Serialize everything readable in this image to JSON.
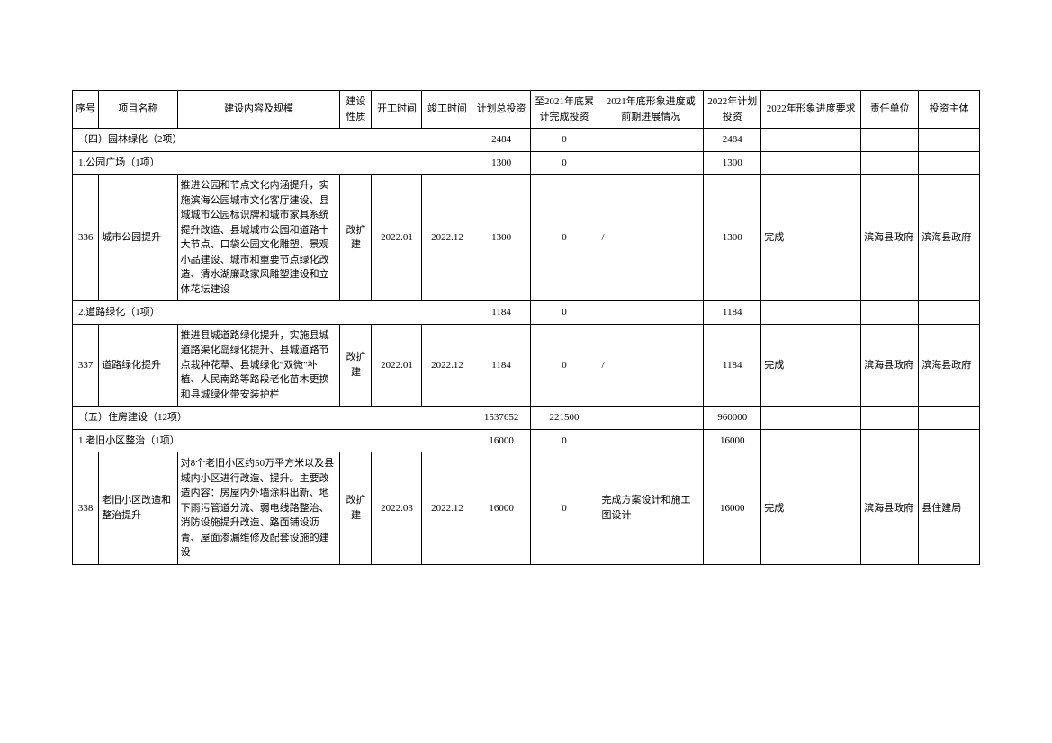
{
  "headers": {
    "seq": "序号",
    "name": "项目名称",
    "content": "建设内容及规模",
    "nature": "建设性质",
    "start": "开工时间",
    "end": "竣工时间",
    "plan_inv": "计划总投资",
    "cum_2021": "至2021年底累计完成投资",
    "prog_2021": "2021年底形象进度或前期进展情况",
    "plan_2022": "2022年计划投资",
    "req_2022": "2022年形象进度要求",
    "resp": "责任单位",
    "investor": "投资主体"
  },
  "rows": [
    {
      "type": "section",
      "label": "（四）园林绿化（2项）",
      "plan_inv": "2484",
      "cum_2021": "0",
      "plan_2022": "2484"
    },
    {
      "type": "section",
      "label": "1.公园广场（1项）",
      "plan_inv": "1300",
      "cum_2021": "0",
      "plan_2022": "1300"
    },
    {
      "type": "item",
      "seq": "336",
      "name": "城市公园提升",
      "content": "推进公园和节点文化内涵提升，实施滨海公园城市文化客厅建设、县城城市公园标识牌和城市家具系统提升改造、县城城市公园和道路十大节点、口袋公园文化雕塑、景观小品建设、城市和重要节点绿化改造、清水湖廉政家风雕塑建设和立体花坛建设",
      "nature": "改扩建",
      "start": "2022.01",
      "end": "2022.12",
      "plan_inv": "1300",
      "cum_2021": "0",
      "prog_2021": "/",
      "plan_2022": "1300",
      "req_2022": "完成",
      "resp": "滨海县政府",
      "investor": "滨海县政府"
    },
    {
      "type": "section",
      "label": "2.道路绿化（1项）",
      "plan_inv": "1184",
      "cum_2021": "0",
      "plan_2022": "1184"
    },
    {
      "type": "item",
      "seq": "337",
      "name": "道路绿化提升",
      "content": "推进县城道路绿化提升，实施县城道路渠化岛绿化提升、县城道路节点栽种花草、县城绿化\"双微\"补植、人民南路等路段老化苗木更换和县城绿化带安装护栏",
      "nature": "改扩建",
      "start": "2022.01",
      "end": "2022.12",
      "plan_inv": "1184",
      "cum_2021": "0",
      "prog_2021": "/",
      "plan_2022": "1184",
      "req_2022": "完成",
      "resp": "滨海县政府",
      "investor": "滨海县政府"
    },
    {
      "type": "section",
      "label": "（五）住房建设（12项）",
      "plan_inv": "1537652",
      "cum_2021": "221500",
      "plan_2022": "960000"
    },
    {
      "type": "section",
      "label": "1.老旧小区整治（1项）",
      "plan_inv": "16000",
      "cum_2021": "0",
      "plan_2022": "16000"
    },
    {
      "type": "item",
      "seq": "338",
      "name": "老旧小区改造和整治提升",
      "content": "对8个老旧小区约50万平方米以及县城内小区进行改造、提升。主要改造内容：房屋内外墙涂料出新、地下雨污管道分流、弱电线路整治、消防设施提升改造、路面铺设沥青、屋面渗漏维修及配套设施的建设",
      "nature": "改扩建",
      "start": "2022.03",
      "end": "2022.12",
      "plan_inv": "16000",
      "cum_2021": "0",
      "prog_2021": "完成方案设计和施工图设计",
      "plan_2022": "16000",
      "req_2022": "完成",
      "resp": "滨海县政府",
      "investor": "县住建局"
    }
  ]
}
